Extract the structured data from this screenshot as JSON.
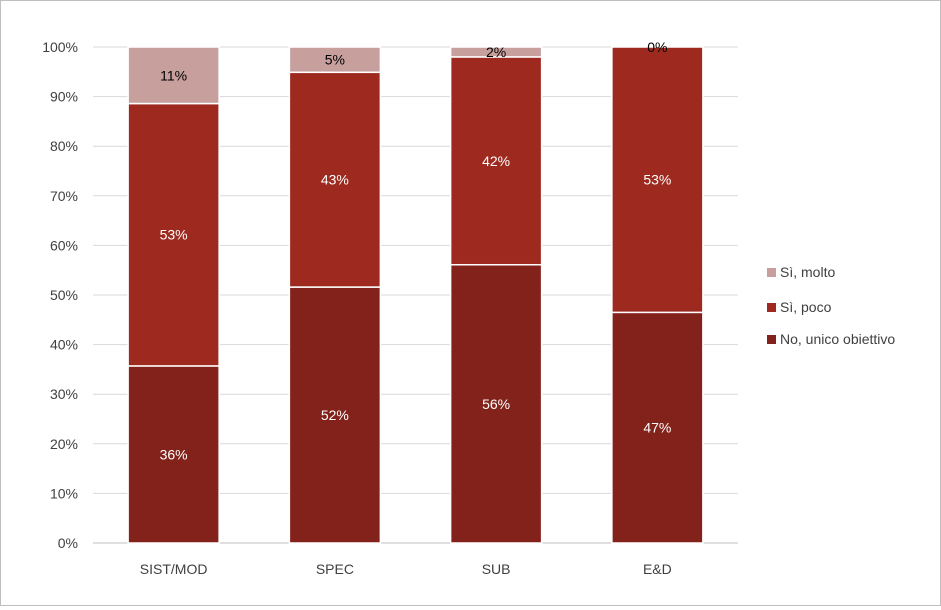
{
  "chart_data": {
    "type": "bar",
    "stacked": true,
    "percent": true,
    "categories": [
      "SIST/MOD",
      "SPEC",
      "SUB",
      "E&D"
    ],
    "series": [
      {
        "name": "No, unico obiettivo",
        "values": [
          35.7,
          51.6,
          56.1,
          46.5
        ],
        "labels": [
          "36%",
          "52%",
          "56%",
          "47%"
        ],
        "color": "#82221a",
        "label_color": "#ffffff"
      },
      {
        "name": "Sì, poco",
        "values": [
          52.9,
          43.3,
          41.9,
          53.5
        ],
        "labels": [
          "53%",
          "43%",
          "42%",
          "53%"
        ],
        "color": "#9e2a1f",
        "label_color": "#ffffff"
      },
      {
        "name": "Sì, molto",
        "values": [
          11.4,
          5.1,
          2.0,
          0.0
        ],
        "labels": [
          "11%",
          "5%",
          "2%",
          "0%"
        ],
        "color": "#c7a09e",
        "label_color": "#000000"
      }
    ],
    "yticks": [
      "0%",
      "10%",
      "20%",
      "30%",
      "40%",
      "50%",
      "60%",
      "70%",
      "80%",
      "90%",
      "100%"
    ],
    "ylim": [
      0,
      100
    ],
    "grid": true,
    "legend_position": "right"
  }
}
